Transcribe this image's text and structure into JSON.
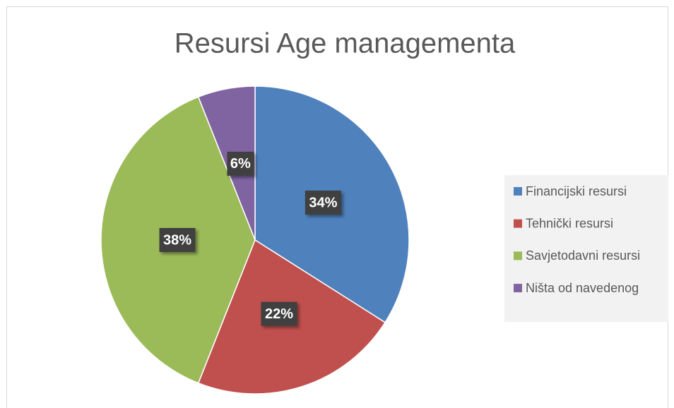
{
  "chart_data": {
    "type": "pie",
    "title": "Resursi Age managementa",
    "categories": [
      "Financijski resursi",
      "Tehnički resursi",
      "Savjetodavni resursi",
      "Ništa od navedenog"
    ],
    "values": [
      34,
      22,
      38,
      6
    ],
    "value_labels": [
      "34%",
      "22%",
      "38%",
      "6%"
    ],
    "colors": [
      "#4f81bd",
      "#c0504d",
      "#9bbb59",
      "#8064a2"
    ],
    "legend": "right"
  }
}
